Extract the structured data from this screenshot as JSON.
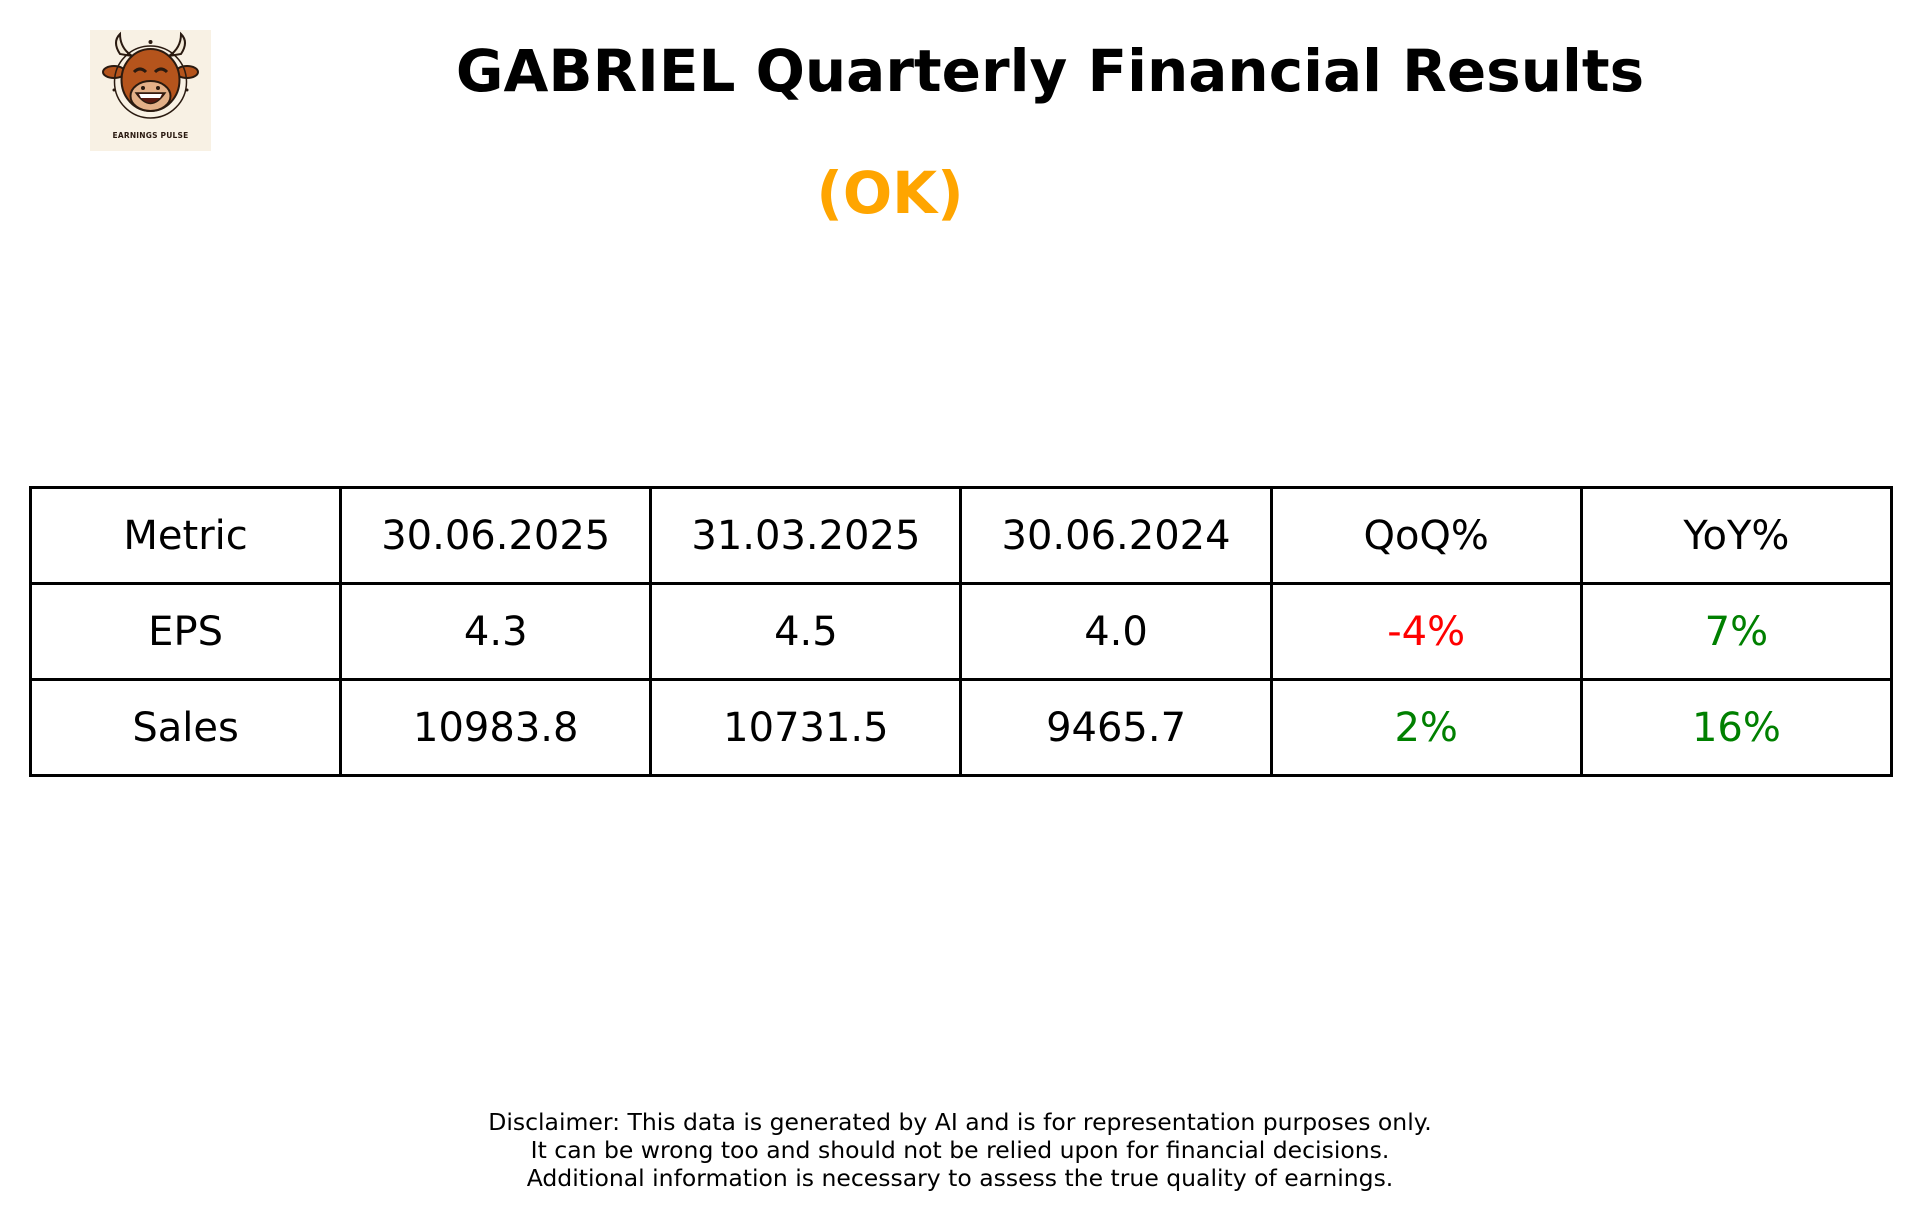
{
  "logo": {
    "text": "EARNINGS PULSE",
    "icon": "bull-mascot-icon",
    "bg_color": "#f8f1e4"
  },
  "title": "GABRIEL Quarterly Financial Results",
  "rating": {
    "text": "(OK)",
    "color": "#FFA500"
  },
  "table": {
    "headers": [
      "Metric",
      "30.06.2025",
      "31.03.2025",
      "30.06.2024",
      "QoQ%",
      "YoY%"
    ],
    "rows": [
      {
        "metric": "EPS",
        "q1": "4.3",
        "q2": "4.5",
        "q3": "4.0",
        "qoq": "-4%",
        "yoy": "7%",
        "qoq_color": "#FF0000",
        "yoy_color": "#008000"
      },
      {
        "metric": "Sales",
        "q1": "10983.8",
        "q2": "10731.5",
        "q3": "9465.7",
        "qoq": "2%",
        "yoy": "16%",
        "qoq_color": "#008000",
        "yoy_color": "#008000"
      }
    ]
  },
  "disclaimer": [
    "Disclaimer: This data is generated by AI and is for representation purposes only.",
    "It can be wrong too and should not be relied upon for financial decisions.",
    "Additional information is necessary to assess the true quality of earnings."
  ]
}
